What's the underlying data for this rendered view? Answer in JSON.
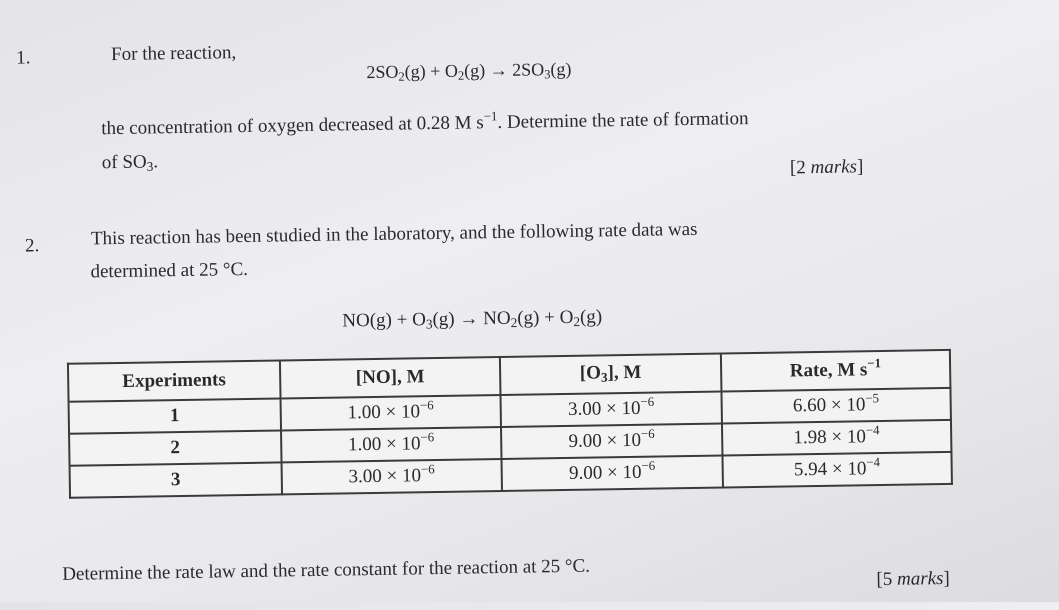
{
  "q1": {
    "number": "1.",
    "intro": "For the reaction,",
    "equation": {
      "r1_coef": "2SO",
      "r1_sub": "2",
      "r1_state": "(g) + O",
      "r2_sub": "2",
      "r2_state": "(g) → 2SO",
      "p_sub": "3",
      "p_state": "(g)"
    },
    "text_a": "the concentration of oxygen decreased at 0.28 M s",
    "text_a_sup": "−1",
    "text_b": ". Determine the rate of formation",
    "text_c": "of SO",
    "text_c_sub": "3",
    "text_c_end": ".",
    "marks_open": "[2 ",
    "marks_word": "marks",
    "marks_close": "]"
  },
  "q2": {
    "number": "2.",
    "line1": "This reaction has been studied in the laboratory, and the following rate data was",
    "line2": "determined at 25 °C.",
    "equation": {
      "a": "NO(g) + O",
      "a_sub": "3",
      "b": "(g) → NO",
      "b_sub": "2",
      "c": "(g) + O",
      "c_sub": "2",
      "d": "(g)"
    },
    "table": {
      "headers": {
        "experiments": "Experiments",
        "no": "[NO], M",
        "o3_pre": "[O",
        "o3_sub": "3",
        "o3_post": "], M",
        "rate": "Rate, M s",
        "rate_sup": "−1"
      },
      "rows": [
        {
          "exp": "1",
          "no": "1.00 × 10",
          "no_exp": "−6",
          "o3": "3.00 × 10",
          "o3_exp": "−6",
          "rate": "6.60 × 10",
          "rate_exp": "−5"
        },
        {
          "exp": "2",
          "no": "1.00 × 10",
          "no_exp": "−6",
          "o3": "9.00 × 10",
          "o3_exp": "−6",
          "rate": "1.98 × 10",
          "rate_exp": "−4"
        },
        {
          "exp": "3",
          "no": "3.00 × 10",
          "no_exp": "−6",
          "o3": "9.00 × 10",
          "o3_exp": "−6",
          "rate": "5.94 × 10",
          "rate_exp": "−4"
        }
      ]
    },
    "question": "Determine the rate law and the rate constant for the reaction at 25 °C.",
    "marks_open": "[5 ",
    "marks_word": "marks",
    "marks_close": "]"
  }
}
